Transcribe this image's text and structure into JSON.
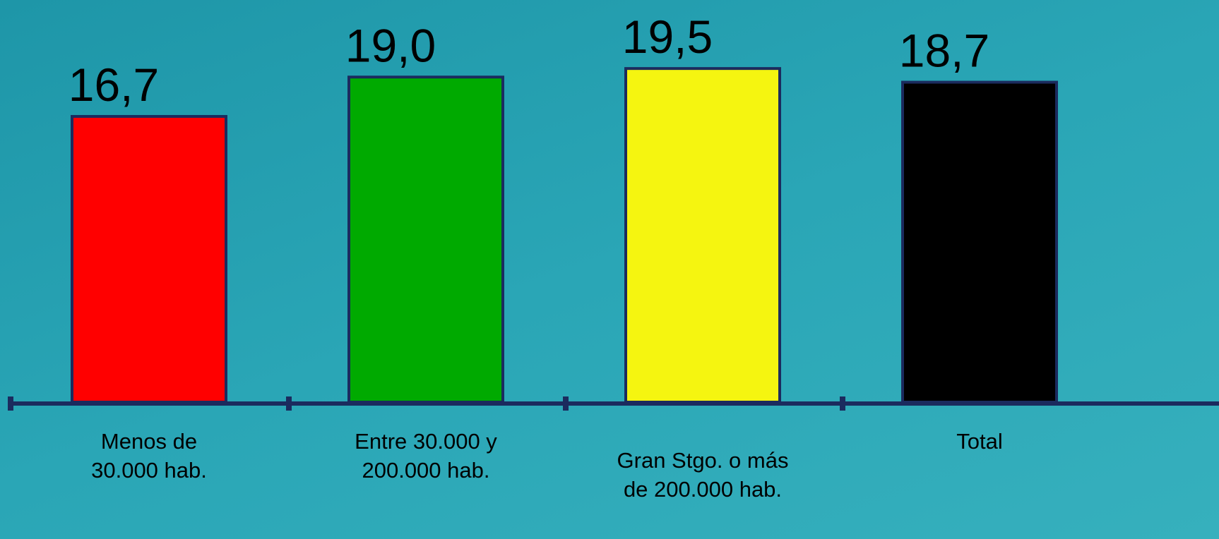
{
  "chart_data": {
    "type": "bar",
    "categories": [
      "Menos de\n30.000 hab.",
      "Entre 30.000 y\n200.000 hab.",
      "Gran Stgo. o más\nde 200.000 hab.",
      "Total"
    ],
    "values": [
      16.7,
      19.0,
      19.5,
      18.7
    ],
    "value_labels": [
      "16,7",
      "19,0",
      "19,5",
      "18,7"
    ],
    "colors": [
      "#ff0000",
      "#00aa00",
      "#f5f510",
      "#000000"
    ]
  }
}
